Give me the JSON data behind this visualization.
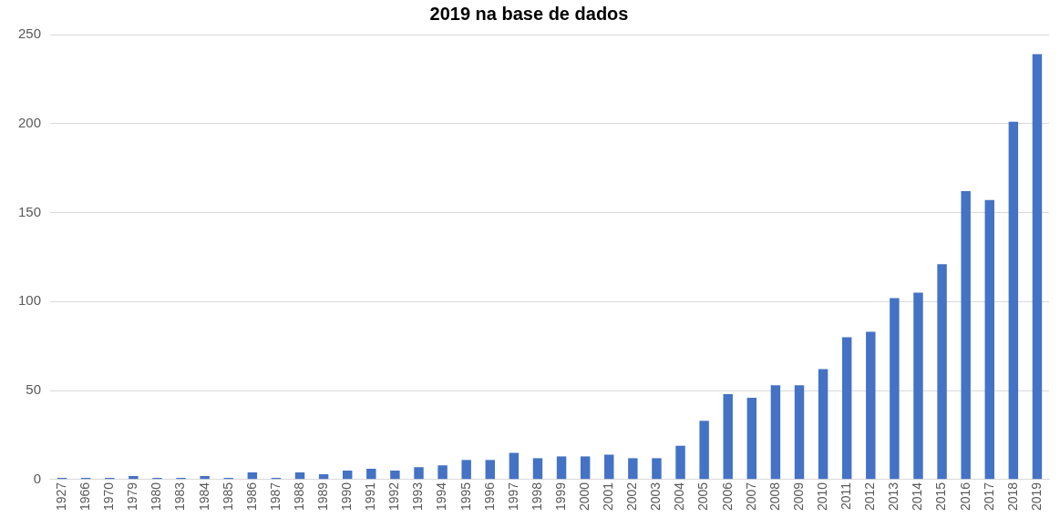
{
  "chart_data": {
    "type": "bar",
    "title": "2019 na base de dados",
    "categories": [
      "1927",
      "1966",
      "1970",
      "1979",
      "1980",
      "1983",
      "1984",
      "1985",
      "1986",
      "1987",
      "1988",
      "1989",
      "1990",
      "1991",
      "1992",
      "1993",
      "1994",
      "1995",
      "1996",
      "1997",
      "1998",
      "1999",
      "2000",
      "2001",
      "2002",
      "2003",
      "2004",
      "2005",
      "2006",
      "2007",
      "2008",
      "2009",
      "2010",
      "2011",
      "2012",
      "2013",
      "2014",
      "2015",
      "2016",
      "2017",
      "2018",
      "2019"
    ],
    "values": [
      1,
      1,
      1,
      2,
      1,
      1,
      2,
      1,
      4,
      1,
      4,
      3,
      5,
      6,
      5,
      7,
      8,
      11,
      11,
      15,
      12,
      13,
      13,
      14,
      12,
      12,
      19,
      33,
      48,
      46,
      53,
      53,
      62,
      80,
      83,
      102,
      105,
      121,
      162,
      157,
      201,
      239
    ],
    "color": "#4472c4",
    "ylim": [
      0,
      250
    ],
    "yticks": [
      0,
      50,
      100,
      150,
      200,
      250
    ],
    "grid": "y"
  }
}
